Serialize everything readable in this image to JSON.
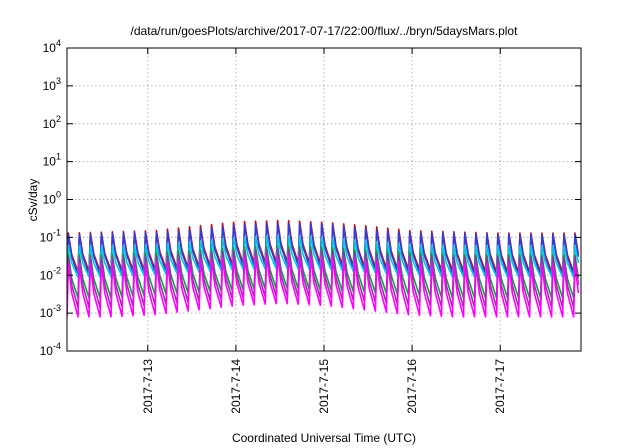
{
  "chart_data": {
    "type": "line",
    "title": "/data/run/goesPlots/archive/2017-07-17/22:00/flux/../bryn/5daysMars.plot",
    "xlabel": "Coordinated Universal Time (UTC)",
    "ylabel": "cSv/day",
    "y_scale": "log",
    "ylim": [
      0.0001,
      10000
    ],
    "y_ticks": [
      {
        "base": "10",
        "exp": "-4"
      },
      {
        "base": "10",
        "exp": "-3"
      },
      {
        "base": "10",
        "exp": "-2"
      },
      {
        "base": "10",
        "exp": "-1"
      },
      {
        "base": "10",
        "exp": "0"
      },
      {
        "base": "10",
        "exp": "1"
      },
      {
        "base": "10",
        "exp": "2"
      },
      {
        "base": "10",
        "exp": "3"
      },
      {
        "base": "10",
        "exp": "4"
      }
    ],
    "xlim": [
      "2017-07-12T02:00",
      "2017-07-17T22:00"
    ],
    "x_ticks": [
      "2017-7-13",
      "2017-7-14",
      "2017-7-15",
      "2017-7-16",
      "2017-7-17"
    ],
    "x_tick_dates": [
      "2017-07-13T00:00",
      "2017-07-14T00:00",
      "2017-07-15T00:00",
      "2017-07-16T00:00",
      "2017-07-17T00:00"
    ],
    "grid": true,
    "legend": "none",
    "oscillation_period_hours": 3,
    "series": [
      {
        "color": "#e00000",
        "peak_values": [
          0.13,
          0.14,
          0.15,
          0.2,
          0.26,
          0.28,
          0.25,
          0.2,
          0.15,
          0.14,
          0.13,
          0.13,
          0.13
        ],
        "trough_values": [
          0.012,
          0.013,
          0.014,
          0.016,
          0.02,
          0.022,
          0.02,
          0.016,
          0.014,
          0.013,
          0.012,
          0.012,
          0.012
        ]
      },
      {
        "color": "#2a3fe0",
        "peak_values": [
          0.12,
          0.13,
          0.13,
          0.17,
          0.22,
          0.24,
          0.22,
          0.17,
          0.13,
          0.13,
          0.12,
          0.12,
          0.12
        ],
        "trough_values": [
          0.01,
          0.011,
          0.012,
          0.014,
          0.017,
          0.019,
          0.017,
          0.014,
          0.012,
          0.011,
          0.01,
          0.01,
          0.01
        ]
      },
      {
        "color": "#00c8e0",
        "peak_values": [
          0.06,
          0.06,
          0.065,
          0.08,
          0.1,
          0.11,
          0.1,
          0.08,
          0.065,
          0.06,
          0.06,
          0.06,
          0.06
        ],
        "trough_values": [
          0.009,
          0.009,
          0.01,
          0.012,
          0.014,
          0.015,
          0.014,
          0.012,
          0.01,
          0.009,
          0.009,
          0.009,
          0.009
        ]
      },
      {
        "color": "#10a040",
        "peak_values": [
          0.035,
          0.035,
          0.04,
          0.045,
          0.055,
          0.06,
          0.055,
          0.045,
          0.04,
          0.035,
          0.035,
          0.035,
          0.035
        ],
        "trough_values": [
          0.0025,
          0.0025,
          0.003,
          0.0035,
          0.004,
          0.0045,
          0.004,
          0.0035,
          0.003,
          0.0025,
          0.0025,
          0.0025,
          0.0025
        ]
      },
      {
        "color": "#9b2fa8",
        "peak_values": [
          0.03,
          0.03,
          0.032,
          0.038,
          0.045,
          0.05,
          0.045,
          0.038,
          0.032,
          0.03,
          0.03,
          0.03,
          0.03
        ],
        "trough_values": [
          0.0014,
          0.0014,
          0.0016,
          0.002,
          0.0025,
          0.0028,
          0.0025,
          0.002,
          0.0016,
          0.0014,
          0.0014,
          0.0014,
          0.0014
        ]
      },
      {
        "color": "#ff00ff",
        "peak_values": [
          0.02,
          0.02,
          0.022,
          0.025,
          0.03,
          0.033,
          0.03,
          0.025,
          0.022,
          0.02,
          0.02,
          0.02,
          0.02
        ],
        "trough_values": [
          0.0008,
          0.0008,
          0.0009,
          0.0012,
          0.0016,
          0.0018,
          0.0016,
          0.0012,
          0.0009,
          0.0008,
          0.0008,
          0.0008,
          0.0008
        ]
      }
    ]
  }
}
